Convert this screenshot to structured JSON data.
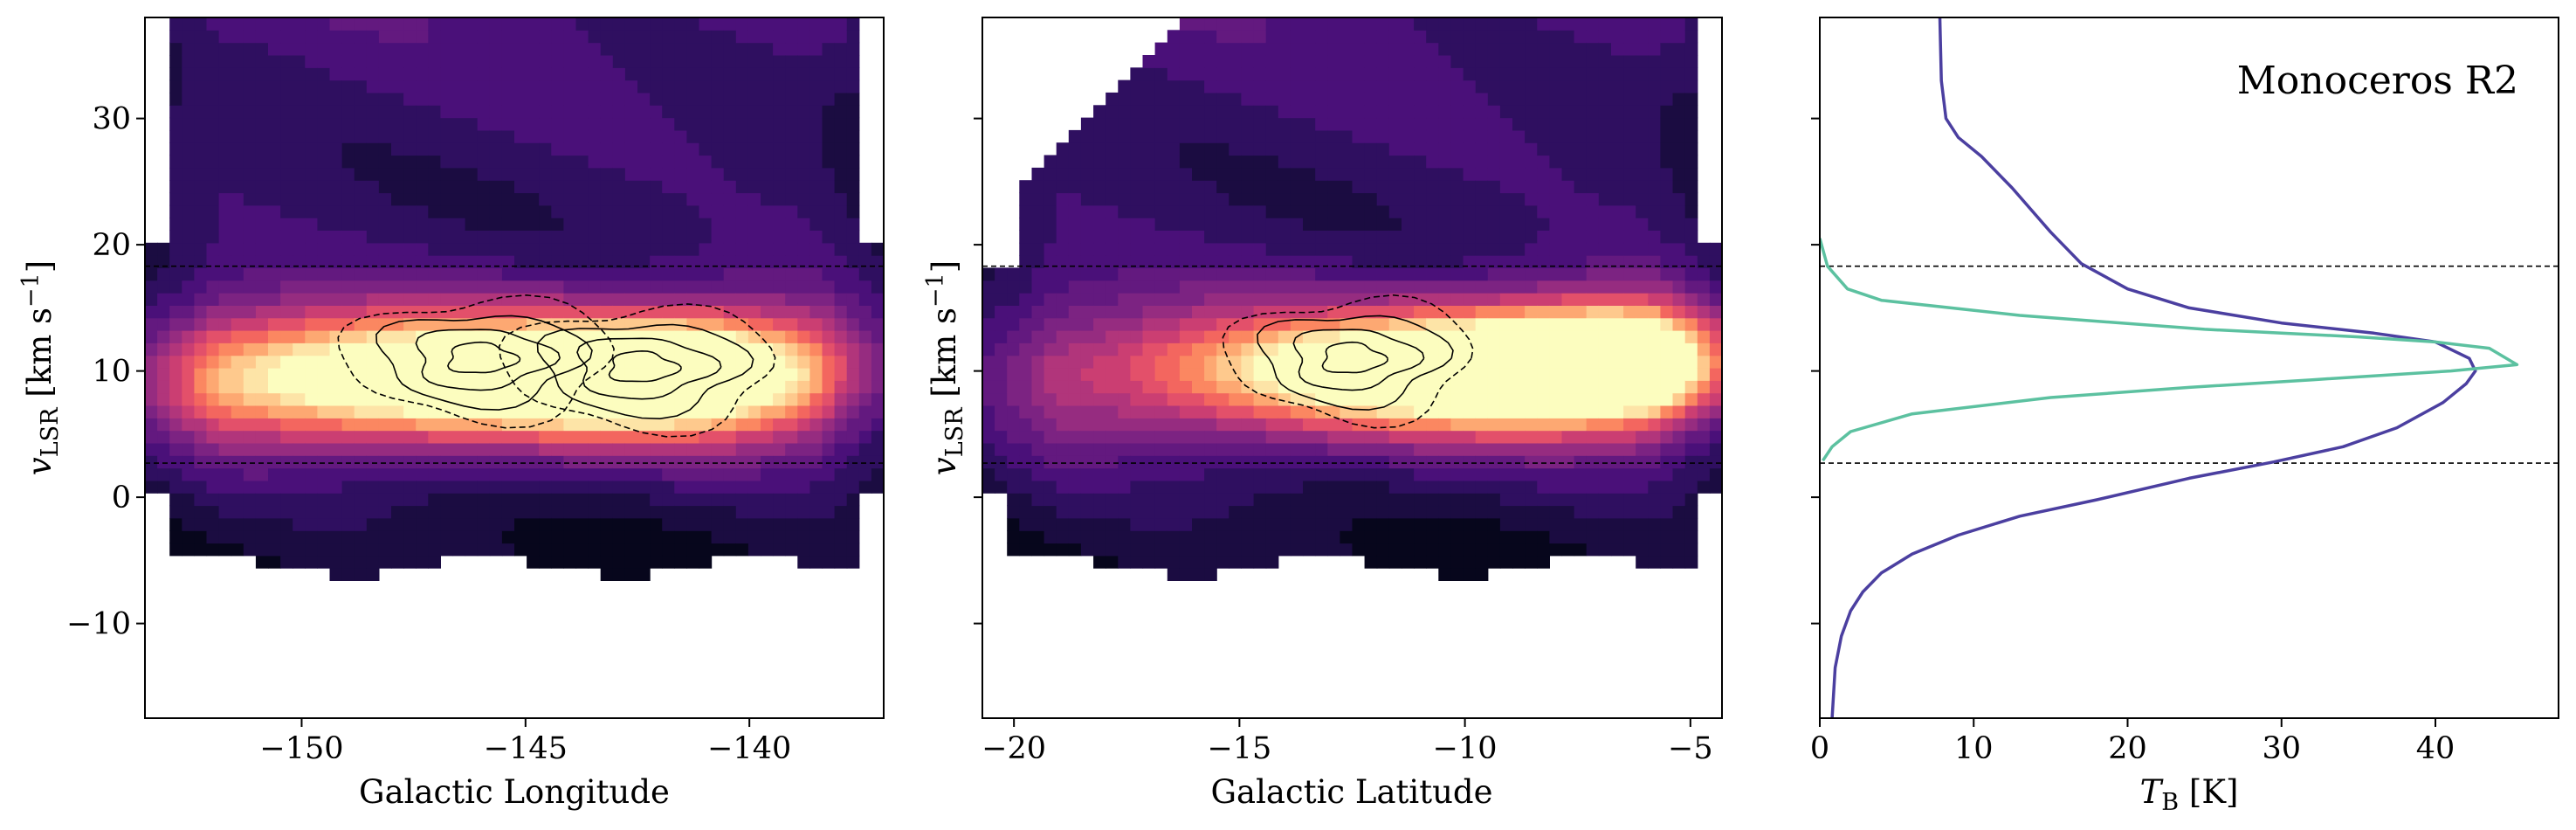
{
  "chart_data": [
    {
      "type": "heatmap",
      "panel": "left",
      "xlabel": "Galactic Longitude",
      "ylabel_main": "v",
      "ylabel_sub": "LSR",
      "ylabel_units": " [km s",
      "ylabel_exp": "−1",
      "ylabel_close": "]",
      "xlim": [
        -153.5,
        -137
      ],
      "ylim": [
        -17.5,
        38
      ],
      "xticks": [
        -150,
        -145,
        -140
      ],
      "yticks": [
        -10,
        0,
        10,
        20,
        30
      ],
      "xtick_labels": [
        "−150",
        "−145",
        "−140"
      ],
      "ytick_labels": [
        "−10",
        "0",
        "10",
        "20",
        "30"
      ],
      "reference_lines_y": [
        18.3,
        2.7
      ],
      "colormap": "magma",
      "emission_centers": [
        {
          "x": -146.5,
          "y": 9.5,
          "sx": 4.5,
          "sy": 3.2,
          "amp": 1.0
        },
        {
          "x": -141.5,
          "y": 10.0,
          "sx": 2.2,
          "sy": 3.0,
          "amp": 0.75
        }
      ],
      "contour_peaks": [
        {
          "x": -146.0,
          "y": 11.0
        },
        {
          "x": -142.4,
          "y": 10.3
        }
      ]
    },
    {
      "type": "heatmap",
      "panel": "middle",
      "xlabel": "Galactic Latitude",
      "ylabel_main": "v",
      "ylabel_sub": "LSR",
      "ylabel_units": " [km s",
      "ylabel_exp": "−1",
      "ylabel_close": "]",
      "xlim": [
        -20.7,
        -4.3
      ],
      "ylim": [
        -17.5,
        38
      ],
      "xticks": [
        -20,
        -15,
        -10,
        -5
      ],
      "yticks": [
        -10,
        0,
        10,
        20,
        30
      ],
      "xtick_labels": [
        "−20",
        "−15",
        "−10",
        "−5"
      ],
      "ytick_labels": [
        "",
        "",
        "",
        "",
        ""
      ],
      "reference_lines_y": [
        18.3,
        2.7
      ],
      "colormap": "magma",
      "emission_centers": [
        {
          "x": -10.5,
          "y": 10.0,
          "sx": 4.0,
          "sy": 3.0,
          "amp": 1.0
        },
        {
          "x": -6.5,
          "y": 11.0,
          "sx": 2.5,
          "sy": 3.0,
          "amp": 0.85
        }
      ],
      "contour_peaks": [
        {
          "x": -12.5,
          "y": 11.0
        }
      ]
    },
    {
      "type": "line",
      "panel": "right",
      "xlabel_main": "T",
      "xlabel_sub": "B",
      "xlabel_units": " [K]",
      "annotation": "Monoceros R2",
      "xlim": [
        0,
        48
      ],
      "ylim": [
        -17.5,
        38
      ],
      "xticks": [
        0,
        10,
        20,
        30,
        40
      ],
      "xtick_labels": [
        "0",
        "10",
        "20",
        "30",
        "40"
      ],
      "yticks": [
        -10,
        0,
        10,
        20,
        30
      ],
      "reference_lines_y": [
        18.3,
        2.7
      ],
      "series": [
        {
          "color": "#4b3fa0",
          "points": [
            [
              7.8,
              38
            ],
            [
              7.9,
              33
            ],
            [
              8.2,
              30
            ],
            [
              9.0,
              28.5
            ],
            [
              10.5,
              27
            ],
            [
              12.5,
              24.5
            ],
            [
              15.0,
              21.0
            ],
            [
              17.0,
              18.5
            ],
            [
              20.0,
              16.5
            ],
            [
              24.0,
              15.0
            ],
            [
              30.0,
              13.8
            ],
            [
              36.0,
              13.0
            ],
            [
              40.0,
              12.3
            ],
            [
              42.2,
              11.0
            ],
            [
              42.6,
              10.0
            ],
            [
              42.0,
              9.0
            ],
            [
              40.5,
              7.5
            ],
            [
              37.5,
              5.5
            ],
            [
              34.0,
              4.0
            ],
            [
              29.5,
              2.8
            ],
            [
              24.0,
              1.5
            ],
            [
              18.0,
              -0.2
            ],
            [
              13.0,
              -1.5
            ],
            [
              9.0,
              -3.0
            ],
            [
              6.0,
              -4.5
            ],
            [
              4.0,
              -6.0
            ],
            [
              2.8,
              -7.5
            ],
            [
              2.0,
              -9.0
            ],
            [
              1.4,
              -11.0
            ],
            [
              1.0,
              -13.5
            ],
            [
              0.8,
              -17.5
            ]
          ]
        },
        {
          "color": "#5cc1a0",
          "points": [
            [
              0.0,
              20.5
            ],
            [
              0.5,
              18.3
            ],
            [
              1.8,
              16.5
            ],
            [
              4.0,
              15.6
            ],
            [
              13.0,
              14.4
            ],
            [
              25.0,
              13.3
            ],
            [
              35.0,
              12.7
            ],
            [
              40.0,
              12.3
            ],
            [
              43.5,
              11.8
            ],
            [
              45.3,
              10.5
            ],
            [
              41.0,
              10.0
            ],
            [
              32.0,
              9.3
            ],
            [
              24.0,
              8.7
            ],
            [
              15.0,
              7.9
            ],
            [
              6.0,
              6.6
            ],
            [
              2.0,
              5.2
            ],
            [
              0.8,
              4.0
            ],
            [
              0.2,
              2.9
            ]
          ]
        }
      ]
    }
  ]
}
